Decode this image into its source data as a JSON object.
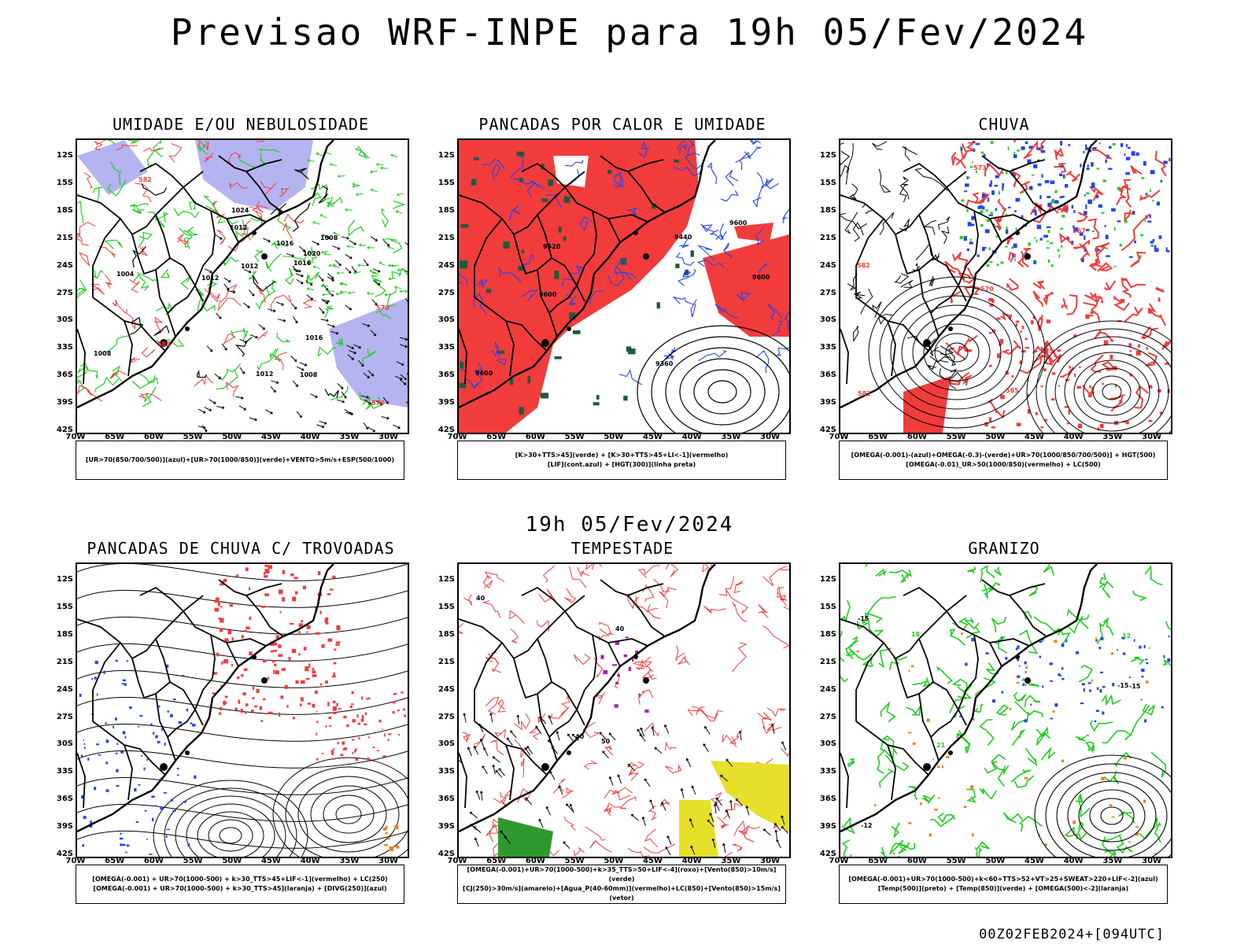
{
  "title": "Previsao WRF-INPE  para 19h 05/Fev/2024",
  "subtitle": "19h 05/Fev/2024",
  "footer": "00Z02FEB2024+[094UTC]",
  "axes": {
    "lat_labels": [
      "12S",
      "15S",
      "18S",
      "21S",
      "24S",
      "27S",
      "30S",
      "33S",
      "36S",
      "39S",
      "42S"
    ],
    "lon_labels": [
      "70W",
      "65W",
      "60W",
      "55W",
      "50W",
      "45W",
      "40W",
      "35W",
      "30W"
    ]
  },
  "colors": {
    "red": "#f23c3c",
    "green": "#22cc22",
    "blue": "#2244ee",
    "lavender": "#b4b4f0",
    "darkgreen": "#1e5a3c",
    "yellow": "#e6e02a",
    "orange": "#f08020",
    "purple": "#a020c0"
  },
  "panels": [
    {
      "title": "UMIDADE E/OU NEBULOSIDADE",
      "legend": [
        "[UR>70(850/700/500)](azul)+[UR>70(1000/850)](verde)+VENTO>5m/s+ESP(500/1000)"
      ],
      "labels": [
        "1008",
        "1008",
        "1012",
        "1012",
        "1016",
        "1016",
        "1012",
        "1008",
        "1012",
        "1016",
        "1020",
        "1024",
        "1004",
        "576",
        "570",
        "582",
        "588"
      ]
    },
    {
      "title": "PANCADAS POR CALOR E UMIDADE",
      "legend": [
        "[K>30+TTS>45](verde) + [K>30+TTS>45+LI<-1](vermelho)",
        "[LIF](cont.azul) + [HGT(300)](linha preta)"
      ],
      "labels": [
        "9600",
        "9600",
        "9600",
        "9600",
        "9440",
        "9360",
        "9520"
      ]
    },
    {
      "title": "CHUVA",
      "legend": [
        "[OMEGA(-0.001)-(azul)+OMEGA(-0.3)-(verde)+UR>70(1000/850/700/500)] + HGT(500)",
        "[OMEGA(-0.01)_UR>50(1000/850)(vermelho) + LC(500)"
      ],
      "labels": [
        "582",
        "585",
        "573",
        "570",
        "567",
        "585",
        "582"
      ]
    },
    {
      "title": "PANCADAS DE CHUVA C/ TROVOADAS",
      "legend": [
        "[OMEGA(-0.001) + UR>70(1000-500) + k>30_TTS>45+LIF<-1](vermelho) + LC(250)",
        "[OMEGA(-0.001) + UR>70(1000-500) + k>30_TTS>45](laranja) + [DIVG(250)](azul)"
      ],
      "labels": []
    },
    {
      "title": "TEMPESTADE",
      "legend": [
        "[OMEGA(-0.001)+UR>70(1000-500)+k>35_TTS>50+LIF<-4](roxo)+[Vento(850)>10m/s](verde)",
        "[CJ(250)>30m/s](amarelo)+[Agua_P(40-60mm)](vermelho)+LC(850)+[Vento(850)>15m/s](vetor)"
      ],
      "labels": [
        "40",
        "40",
        "50",
        "40"
      ]
    },
    {
      "title": "GRANIZO",
      "legend": [
        "[OMEGA(-0.001)+UR>70(1000-500)+k<60+TTS>52+VT>25+SWEAT>220+LIF<-2](azul)",
        "[Temp(500)](preto) + [Temp(850)](verde) + [OMEGA(500)<-2](laranja)"
      ],
      "labels": [
        "-15",
        "-15",
        "-15",
        "12",
        "12",
        "18",
        "21",
        "-12"
      ]
    }
  ]
}
